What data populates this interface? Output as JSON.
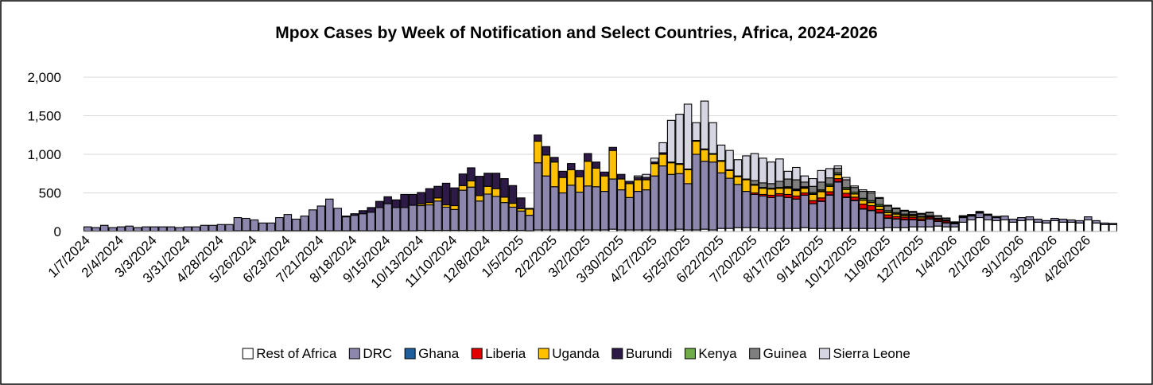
{
  "chart_data": {
    "type": "stacked_bar",
    "title": "Mpox Cases by Week of Notification and Select Countries, Africa, 2024-2026",
    "categories": [
      "1/7/2024",
      null,
      null,
      null,
      "2/4/2024",
      null,
      null,
      null,
      "3/3/2024",
      null,
      null,
      null,
      "3/31/2024",
      null,
      null,
      null,
      "4/28/2024",
      null,
      null,
      null,
      "5/26/2024",
      null,
      null,
      null,
      "6/23/2024",
      null,
      null,
      null,
      "7/21/2024",
      null,
      null,
      null,
      "8/18/2024",
      null,
      null,
      null,
      "9/15/2024",
      null,
      null,
      null,
      "10/13/2024",
      null,
      null,
      null,
      "11/10/2024",
      null,
      null,
      null,
      "12/8/2024",
      null,
      null,
      null,
      "1/5/2025",
      null,
      null,
      null,
      "2/2/2025",
      null,
      null,
      null,
      "3/2/2025",
      null,
      null,
      null,
      "3/30/2025",
      null,
      null,
      null,
      "4/27/2025",
      null,
      null,
      null,
      "5/25/2025",
      null,
      null,
      null,
      "6/22/2025",
      null,
      null,
      null,
      "7/20/2025",
      null,
      null,
      null,
      "8/17/2025",
      null,
      null,
      null,
      "9/14/2025",
      null,
      null,
      null,
      "10/12/2025",
      null,
      null,
      null,
      "11/9/2025",
      null,
      null,
      null,
      "12/7/2025",
      null,
      null,
      null,
      "1/4/2026",
      null,
      null,
      null,
      "2/1/2026",
      null,
      null,
      null,
      "3/1/2026",
      null,
      null,
      null,
      "3/29/2026",
      null,
      null,
      null,
      "4/26/2026",
      null,
      null,
      null
    ],
    "series": [
      {
        "name": "Rest of Africa",
        "color": "#ffffff",
        "values": [
          5,
          5,
          5,
          5,
          5,
          5,
          5,
          5,
          5,
          5,
          5,
          5,
          5,
          5,
          5,
          5,
          5,
          5,
          10,
          10,
          10,
          5,
          5,
          10,
          10,
          10,
          10,
          10,
          10,
          10,
          10,
          10,
          10,
          10,
          10,
          10,
          10,
          10,
          10,
          10,
          15,
          15,
          15,
          15,
          15,
          15,
          15,
          15,
          15,
          15,
          15,
          15,
          15,
          10,
          20,
          20,
          20,
          20,
          20,
          20,
          20,
          20,
          20,
          30,
          20,
          20,
          20,
          20,
          20,
          20,
          20,
          30,
          20,
          20,
          30,
          20,
          40,
          40,
          50,
          50,
          50,
          40,
          40,
          40,
          40,
          40,
          50,
          40,
          40,
          40,
          40,
          40,
          40,
          40,
          40,
          40,
          50,
          50,
          50,
          60,
          60,
          60,
          70,
          60,
          60,
          120,
          150,
          180,
          150,
          140,
          150,
          120,
          140,
          150,
          120,
          110,
          140,
          120,
          120,
          110,
          150,
          110,
          90,
          90
        ]
      },
      {
        "name": "DRC",
        "color": "#8e87ad",
        "values": [
          55,
          45,
          75,
          45,
          55,
          65,
          45,
          55,
          55,
          55,
          55,
          45,
          55,
          55,
          75,
          75,
          85,
          85,
          170,
          160,
          140,
          105,
          105,
          170,
          210,
          150,
          190,
          270,
          320,
          410,
          290,
          180,
          200,
          220,
          240,
          300,
          350,
          300,
          300,
          330,
          320,
          330,
          380,
          300,
          270,
          520,
          560,
          380,
          470,
          440,
          360,
          300,
          250,
          200,
          870,
          700,
          560,
          480,
          580,
          490,
          570,
          560,
          500,
          650,
          520,
          420,
          500,
          520,
          700,
          830,
          720,
          720,
          600,
          980,
          880,
          880,
          720,
          650,
          560,
          470,
          430,
          420,
          400,
          420,
          400,
          380,
          420,
          320,
          350,
          430,
          600,
          400,
          360,
          250,
          230,
          200,
          120,
          110,
          100,
          90,
          80,
          100,
          60,
          50,
          40,
          60,
          50,
          60,
          60,
          40,
          50,
          40,
          40,
          40,
          40,
          30,
          30,
          40,
          30,
          30,
          40,
          30,
          20,
          15
        ]
      },
      {
        "name": "Ghana",
        "color": "#1f5f9e",
        "values": [
          0,
          0,
          0,
          0,
          0,
          0,
          0,
          0,
          0,
          0,
          0,
          0,
          0,
          0,
          0,
          0,
          0,
          0,
          0,
          0,
          0,
          0,
          0,
          0,
          0,
          0,
          0,
          0,
          0,
          0,
          0,
          0,
          0,
          0,
          0,
          0,
          0,
          0,
          0,
          0,
          0,
          0,
          0,
          0,
          0,
          0,
          0,
          0,
          0,
          0,
          0,
          0,
          0,
          0,
          0,
          0,
          0,
          0,
          0,
          0,
          0,
          0,
          0,
          0,
          0,
          0,
          0,
          0,
          0,
          0,
          0,
          0,
          0,
          0,
          0,
          0,
          0,
          0,
          0,
          0,
          0,
          0,
          0,
          0,
          0,
          0,
          0,
          0,
          5,
          5,
          5,
          5,
          5,
          5,
          5,
          5,
          5,
          5,
          5,
          5,
          5,
          5,
          5,
          5,
          0,
          0,
          0,
          0,
          0,
          0,
          0,
          0,
          0,
          0,
          0,
          0,
          0,
          0,
          0,
          0,
          0,
          0,
          0,
          0
        ]
      },
      {
        "name": "Liberia",
        "color": "#e00000",
        "values": [
          0,
          0,
          0,
          0,
          0,
          0,
          0,
          0,
          0,
          0,
          0,
          0,
          0,
          0,
          0,
          0,
          0,
          0,
          0,
          0,
          0,
          0,
          0,
          0,
          0,
          0,
          0,
          0,
          0,
          0,
          0,
          0,
          0,
          0,
          0,
          0,
          0,
          0,
          0,
          0,
          0,
          0,
          0,
          0,
          0,
          0,
          0,
          0,
          0,
          0,
          0,
          0,
          0,
          0,
          0,
          0,
          0,
          0,
          0,
          0,
          0,
          0,
          0,
          0,
          0,
          0,
          0,
          0,
          0,
          0,
          0,
          0,
          0,
          0,
          0,
          0,
          0,
          0,
          0,
          0,
          20,
          20,
          30,
          30,
          40,
          40,
          30,
          40,
          40,
          40,
          40,
          50,
          40,
          60,
          60,
          40,
          40,
          30,
          30,
          30,
          20,
          20,
          20,
          20,
          10,
          10,
          5,
          5,
          5,
          5,
          0,
          0,
          0,
          0,
          0,
          0,
          0,
          0,
          0,
          0,
          0,
          0,
          0,
          0
        ]
      },
      {
        "name": "Uganda",
        "color": "#ffc000",
        "values": [
          0,
          0,
          0,
          0,
          0,
          0,
          0,
          0,
          0,
          0,
          0,
          0,
          0,
          0,
          0,
          0,
          0,
          0,
          0,
          0,
          0,
          0,
          0,
          0,
          0,
          0,
          0,
          0,
          0,
          0,
          0,
          0,
          0,
          0,
          0,
          0,
          0,
          0,
          0,
          0,
          20,
          30,
          40,
          30,
          50,
          60,
          80,
          70,
          100,
          100,
          70,
          50,
          30,
          80,
          280,
          270,
          320,
          200,
          200,
          200,
          320,
          240,
          200,
          370,
          140,
          180,
          150,
          130,
          160,
          150,
          150,
          120,
          180,
          170,
          150,
          100,
          150,
          100,
          100,
          150,
          100,
          80,
          80,
          70,
          80,
          70,
          60,
          80,
          80,
          70,
          50,
          50,
          40,
          50,
          40,
          40,
          30,
          30,
          20,
          20,
          20,
          10,
          10,
          10,
          5,
          5,
          5,
          5,
          5,
          5,
          0,
          0,
          0,
          0,
          0,
          0,
          0,
          0,
          0,
          0,
          0,
          0,
          0,
          0
        ]
      },
      {
        "name": "Burundi",
        "color": "#2e1a47",
        "values": [
          0,
          0,
          0,
          0,
          0,
          0,
          0,
          0,
          0,
          0,
          0,
          0,
          0,
          0,
          0,
          0,
          0,
          0,
          0,
          0,
          0,
          0,
          0,
          0,
          0,
          0,
          0,
          0,
          0,
          0,
          0,
          10,
          20,
          40,
          60,
          80,
          90,
          100,
          170,
          140,
          150,
          180,
          150,
          280,
          230,
          150,
          170,
          250,
          170,
          200,
          240,
          230,
          140,
          10,
          80,
          110,
          60,
          80,
          80,
          80,
          100,
          80,
          50,
          40,
          60,
          30,
          30,
          30,
          20,
          20,
          10,
          10,
          10,
          10,
          10,
          10,
          10,
          10,
          10,
          10,
          10,
          10,
          10,
          10,
          10,
          10,
          10,
          10,
          10,
          10,
          5,
          5,
          5,
          5,
          5,
          5,
          5,
          5,
          5,
          5,
          0,
          0,
          0,
          0,
          0,
          0,
          0,
          0,
          0,
          0,
          0,
          0,
          0,
          0,
          0,
          0,
          0,
          0,
          0,
          0,
          0,
          0,
          0,
          0
        ]
      },
      {
        "name": "Kenya",
        "color": "#70ad47",
        "values": [
          0,
          0,
          0,
          0,
          0,
          0,
          0,
          0,
          0,
          0,
          0,
          0,
          0,
          0,
          0,
          0,
          0,
          0,
          0,
          0,
          0,
          0,
          0,
          0,
          0,
          0,
          0,
          0,
          0,
          0,
          0,
          0,
          0,
          0,
          0,
          0,
          0,
          0,
          0,
          0,
          0,
          0,
          0,
          0,
          0,
          0,
          0,
          0,
          0,
          0,
          0,
          0,
          0,
          0,
          0,
          0,
          0,
          0,
          0,
          0,
          0,
          0,
          0,
          0,
          0,
          0,
          0,
          0,
          0,
          0,
          0,
          0,
          0,
          0,
          0,
          0,
          0,
          0,
          0,
          0,
          0,
          0,
          0,
          0,
          10,
          10,
          10,
          15,
          15,
          20,
          20,
          20,
          20,
          20,
          20,
          20,
          20,
          15,
          15,
          10,
          10,
          10,
          5,
          5,
          0,
          0,
          0,
          0,
          0,
          0,
          0,
          0,
          0,
          0,
          0,
          0,
          0,
          0,
          0,
          0,
          0,
          0,
          0,
          0
        ]
      },
      {
        "name": "Guinea",
        "color": "#7f7f7f",
        "values": [
          0,
          0,
          0,
          0,
          0,
          0,
          0,
          0,
          0,
          0,
          0,
          0,
          0,
          0,
          0,
          0,
          0,
          0,
          0,
          0,
          0,
          0,
          0,
          0,
          0,
          0,
          0,
          0,
          0,
          0,
          0,
          0,
          0,
          0,
          0,
          0,
          0,
          0,
          0,
          0,
          0,
          0,
          0,
          0,
          0,
          0,
          0,
          0,
          0,
          0,
          0,
          0,
          0,
          0,
          0,
          0,
          0,
          0,
          0,
          0,
          0,
          0,
          0,
          0,
          0,
          0,
          0,
          0,
          0,
          0,
          0,
          0,
          0,
          0,
          0,
          0,
          0,
          0,
          0,
          0,
          50,
          60,
          60,
          80,
          100,
          120,
          60,
          80,
          100,
          80,
          60,
          100,
          60,
          90,
          100,
          80,
          60,
          50,
          40,
          30,
          30,
          40,
          30,
          20,
          10,
          10,
          10,
          10,
          5,
          5,
          0,
          0,
          0,
          0,
          0,
          0,
          0,
          0,
          0,
          0,
          0,
          0,
          0,
          0
        ]
      },
      {
        "name": "Sierra Leone",
        "color": "#d6d6e2",
        "values": [
          0,
          0,
          0,
          0,
          0,
          0,
          0,
          0,
          0,
          0,
          0,
          0,
          0,
          0,
          0,
          0,
          0,
          0,
          0,
          0,
          0,
          0,
          0,
          0,
          0,
          0,
          0,
          0,
          0,
          0,
          0,
          0,
          0,
          0,
          0,
          0,
          0,
          0,
          0,
          0,
          0,
          0,
          0,
          0,
          0,
          0,
          0,
          0,
          0,
          0,
          0,
          0,
          0,
          0,
          0,
          0,
          0,
          0,
          0,
          0,
          0,
          0,
          0,
          0,
          0,
          0,
          20,
          40,
          50,
          130,
          540,
          640,
          840,
          230,
          620,
          400,
          200,
          250,
          210,
          300,
          350,
          320,
          280,
          290,
          100,
          160,
          80,
          100,
          150,
          120,
          30,
          30,
          20,
          20,
          20,
          10,
          10,
          10,
          10,
          10,
          10,
          5,
          5,
          5,
          0,
          0,
          0,
          0,
          0,
          0,
          0,
          0,
          0,
          0,
          0,
          0,
          0,
          0,
          0,
          0,
          0,
          0,
          0,
          0
        ]
      }
    ],
    "ylim": [
      0,
      2000
    ],
    "yticks": [
      0,
      500,
      {
        "value": 1000,
        "label": "1,000"
      },
      {
        "value": 1500,
        "label": "1,500"
      },
      {
        "value": 2000,
        "label": "2,000"
      }
    ],
    "grid": true,
    "legend": "bottom"
  }
}
